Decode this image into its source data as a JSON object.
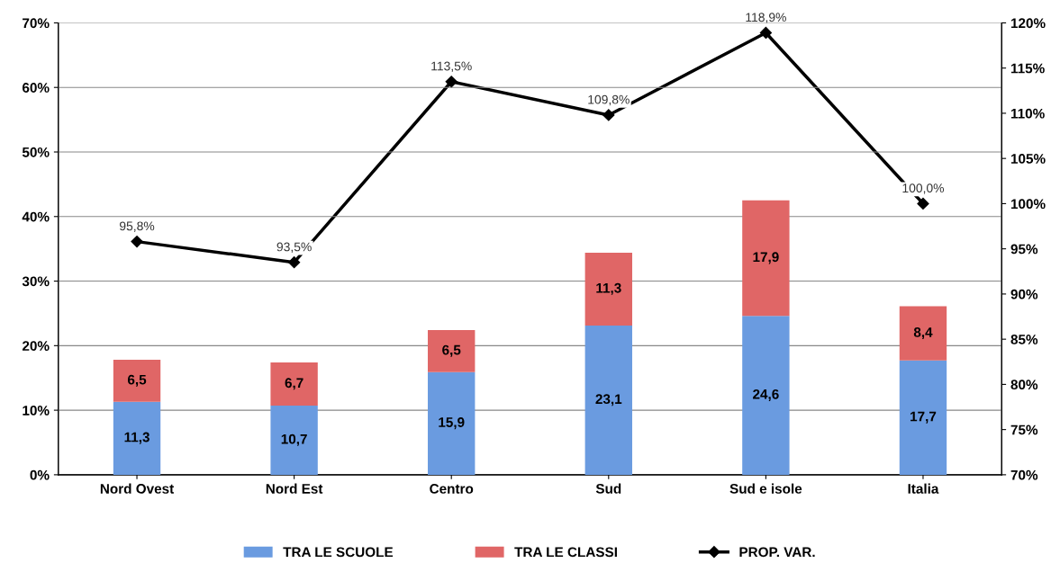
{
  "chart_data": {
    "type": "bar",
    "stacked": true,
    "categories": [
      "Nord Ovest",
      "Nord Est",
      "Centro",
      "Sud",
      "Sud e isole",
      "Italia"
    ],
    "series": [
      {
        "name": "TRA LE SCUOLE",
        "color": "#6a9be0",
        "values": [
          11.3,
          10.7,
          15.9,
          23.1,
          24.6,
          17.7
        ],
        "value_labels": [
          "11,3",
          "10,7",
          "15,9",
          "23,1",
          "24,6",
          "17,7"
        ]
      },
      {
        "name": "TRA LE CLASSI",
        "color": "#e06666",
        "values": [
          6.5,
          6.7,
          6.5,
          11.3,
          17.9,
          8.4
        ],
        "value_labels": [
          "6,5",
          "6,7",
          "6,5",
          "11,3",
          "17,9",
          "8,4"
        ]
      },
      {
        "name": "PROP. VAR.",
        "type": "line",
        "axis": "y2",
        "color": "#000000",
        "marker": "diamond",
        "values": [
          95.8,
          93.5,
          113.5,
          109.8,
          118.9,
          100.0
        ],
        "value_labels": [
          "95,8%",
          "93,5%",
          "113,5%",
          "109,8%",
          "118,9%",
          "100,0%"
        ]
      }
    ],
    "ylim": [
      0,
      70
    ],
    "yticks": [
      {
        "value": 0,
        "label": "0%"
      },
      {
        "value": 10,
        "label": "10%"
      },
      {
        "value": 20,
        "label": "20%"
      },
      {
        "value": 30,
        "label": "30%"
      },
      {
        "value": 40,
        "label": "40%"
      },
      {
        "value": 50,
        "label": "50%"
      },
      {
        "value": 60,
        "label": "60%"
      },
      {
        "value": 70,
        "label": "70%"
      }
    ],
    "y2lim": [
      70,
      120
    ],
    "y2ticks": [
      {
        "value": 70,
        "label": "70%"
      },
      {
        "value": 75,
        "label": "75%"
      },
      {
        "value": 80,
        "label": "80%"
      },
      {
        "value": 85,
        "label": "85%"
      },
      {
        "value": 90,
        "label": "90%"
      },
      {
        "value": 95,
        "label": "95%"
      },
      {
        "value": 100,
        "label": "100%"
      },
      {
        "value": 105,
        "label": "105%"
      },
      {
        "value": 110,
        "label": "110%"
      },
      {
        "value": 115,
        "label": "115%"
      },
      {
        "value": 120,
        "label": "120%"
      }
    ],
    "grid": "y",
    "legend": "bottom"
  }
}
